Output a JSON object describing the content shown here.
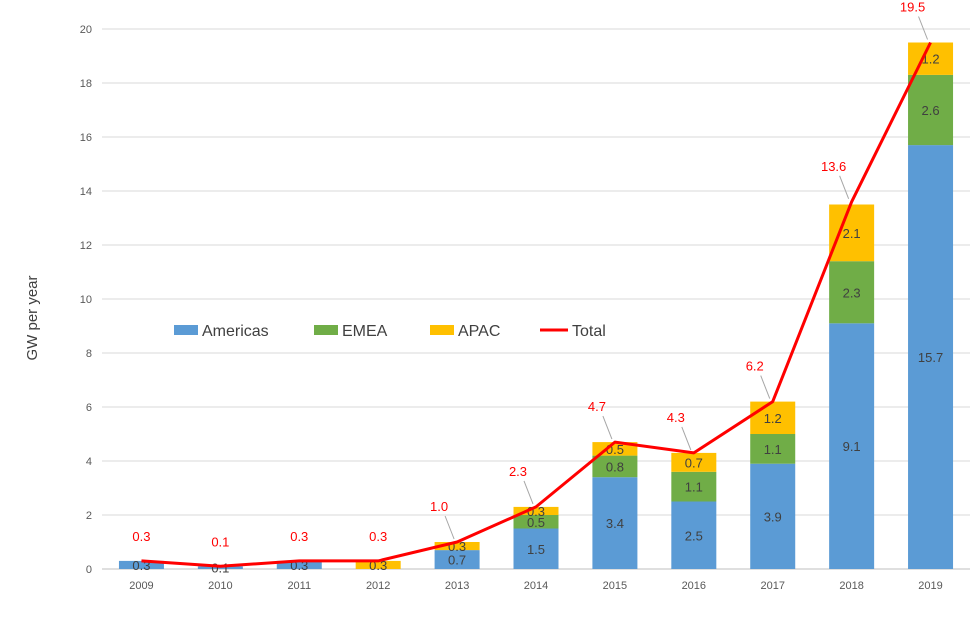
{
  "chart_data": {
    "type": "bar",
    "ylabel": "GW per year",
    "xlabel": "",
    "ylim": [
      0,
      20
    ],
    "yticks": [
      0,
      2,
      4,
      6,
      8,
      10,
      12,
      14,
      16,
      18,
      20
    ],
    "grid": true,
    "legend_position": "center-left",
    "categories": [
      "2009",
      "2010",
      "2011",
      "2012",
      "2013",
      "2014",
      "2015",
      "2016",
      "2017",
      "2018",
      "2019"
    ],
    "series": [
      {
        "name": "Americas",
        "kind": "bar",
        "color": "#5b9bd5",
        "values": [
          0.3,
          0.1,
          0.3,
          0,
          0.7,
          1.5,
          3.4,
          2.5,
          3.9,
          9.1,
          15.7
        ],
        "labels": [
          "0.3",
          "0.1",
          "0.3",
          "",
          "0.7",
          "1.5",
          "3.4",
          "2.5",
          "3.9",
          "9.1",
          "15.7"
        ]
      },
      {
        "name": "EMEA",
        "kind": "bar",
        "color": "#70ad47",
        "values": [
          0,
          0,
          0,
          0,
          0,
          0.5,
          0.8,
          1.1,
          1.1,
          2.3,
          2.6
        ],
        "labels": [
          "",
          "",
          "",
          "",
          "",
          "0.5",
          "0.8",
          "1.1",
          "1.1",
          "2.3",
          "2.6"
        ]
      },
      {
        "name": "APAC",
        "kind": "bar",
        "color": "#ffc000",
        "values": [
          0,
          0,
          0,
          0.3,
          0.3,
          0.3,
          0.5,
          0.7,
          1.2,
          2.1,
          1.2
        ],
        "labels": [
          "",
          "",
          "",
          "0.3",
          "0.3",
          "0.3",
          "0.5",
          "0.7",
          "1.2",
          "2.1",
          "1.2"
        ]
      },
      {
        "name": "Total",
        "kind": "line",
        "color": "#ff0000",
        "values": [
          0.3,
          0.1,
          0.3,
          0.3,
          1.0,
          2.3,
          4.7,
          4.3,
          6.2,
          13.6,
          19.5
        ],
        "labels": [
          "0.3",
          "0.1",
          "0.3",
          "0.3",
          "1.0",
          "2.3",
          "4.7",
          "4.3",
          "6.2",
          "13.6",
          "19.5"
        ]
      }
    ]
  }
}
